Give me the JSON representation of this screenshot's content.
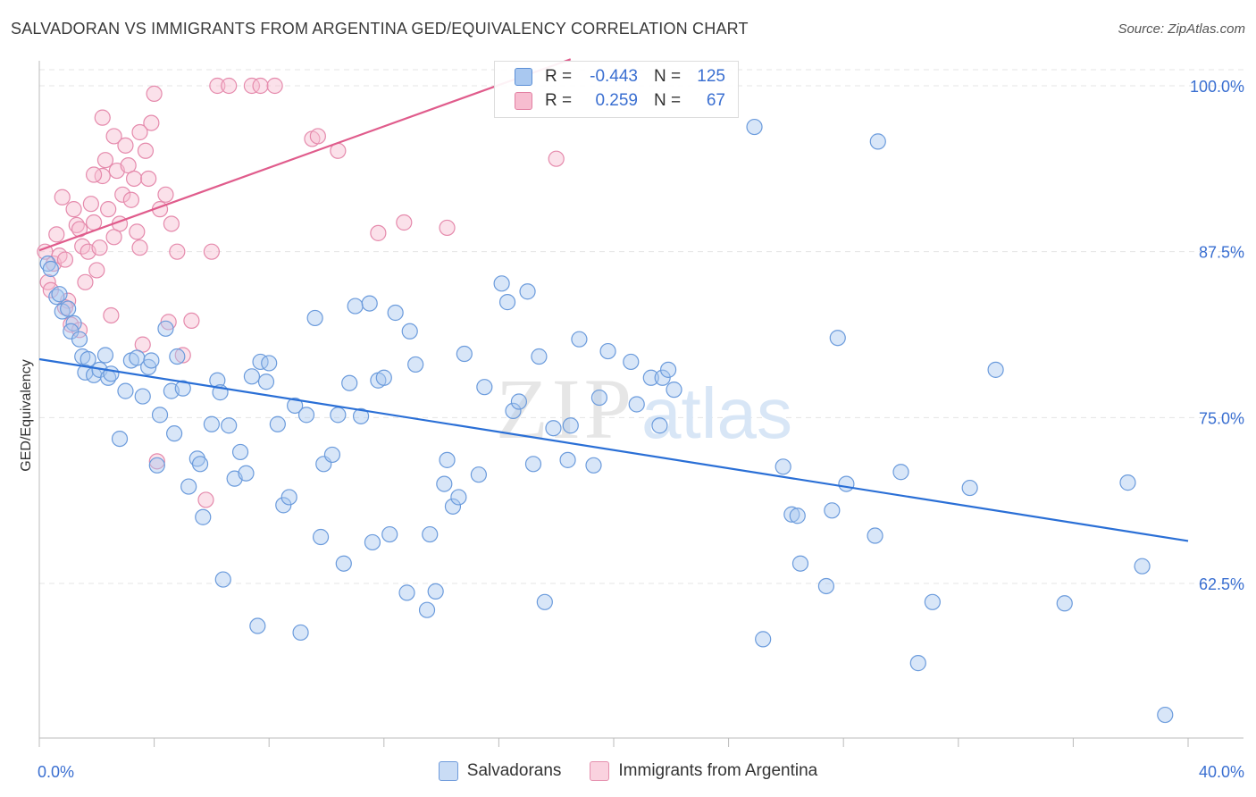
{
  "title": "SALVADORAN VS IMMIGRANTS FROM ARGENTINA GED/EQUIVALENCY CORRELATION CHART",
  "source": "Source: ZipAtlas.com",
  "watermark": {
    "zip": "ZIP",
    "atlas": "atlas"
  },
  "legend": {
    "r_label": "R =",
    "n_label": "N =",
    "series": [
      {
        "name": "Salvadorans",
        "r": "-0.443",
        "n": "125",
        "fill": "#a9c8f0",
        "stroke": "#5b8fd6"
      },
      {
        "name": "Immigrants from Argentina",
        "r": "0.259",
        "n": "67",
        "fill": "#f7bdd0",
        "stroke": "#e27fa2"
      }
    ]
  },
  "colors": {
    "blue_line": "#2a6fd6",
    "pink_line": "#e05c8c",
    "tick_text": "#3a6fd1",
    "grid": "#e4e4e4"
  },
  "chart_data": {
    "type": "scatter",
    "xlabel": "",
    "ylabel": "GED/Equivalency",
    "xlim": [
      0,
      40
    ],
    "ylim": [
      50,
      102
    ],
    "x_tick_labels": [
      {
        "value": 0,
        "label": "0.0%"
      },
      {
        "value": 40,
        "label": "40.0%"
      }
    ],
    "y_tick_labels": [
      {
        "value": 100,
        "label": "100.0%"
      },
      {
        "value": 87.5,
        "label": "87.5%"
      },
      {
        "value": 75,
        "label": "75.0%"
      },
      {
        "value": 62.5,
        "label": "62.5%"
      }
    ],
    "series": [
      {
        "name": "Salvadorans",
        "trend": {
          "x": [
            0,
            40
          ],
          "y": [
            79.4,
            65.7
          ]
        },
        "points": [
          [
            0.3,
            86.6
          ],
          [
            0.4,
            86.2
          ],
          [
            0.6,
            84.1
          ],
          [
            0.7,
            84.3
          ],
          [
            0.8,
            83.0
          ],
          [
            1.0,
            83.2
          ],
          [
            1.2,
            82.1
          ],
          [
            1.1,
            81.5
          ],
          [
            1.4,
            80.9
          ],
          [
            1.5,
            79.6
          ],
          [
            1.7,
            79.4
          ],
          [
            1.6,
            78.4
          ],
          [
            1.9,
            78.2
          ],
          [
            2.1,
            78.6
          ],
          [
            2.3,
            79.7
          ],
          [
            2.4,
            78.0
          ],
          [
            2.5,
            78.3
          ],
          [
            2.8,
            73.4
          ],
          [
            3.0,
            77.0
          ],
          [
            3.2,
            79.3
          ],
          [
            3.4,
            79.5
          ],
          [
            3.8,
            78.8
          ],
          [
            3.6,
            76.6
          ],
          [
            3.9,
            79.3
          ],
          [
            4.2,
            75.2
          ],
          [
            4.4,
            81.7
          ],
          [
            4.1,
            71.4
          ],
          [
            4.6,
            77.0
          ],
          [
            4.7,
            73.8
          ],
          [
            4.8,
            79.6
          ],
          [
            5.0,
            77.2
          ],
          [
            5.2,
            69.8
          ],
          [
            5.5,
            71.9
          ],
          [
            5.6,
            71.5
          ],
          [
            5.7,
            67.5
          ],
          [
            6.0,
            74.5
          ],
          [
            6.2,
            77.8
          ],
          [
            6.3,
            76.9
          ],
          [
            6.4,
            62.8
          ],
          [
            6.6,
            74.4
          ],
          [
            6.8,
            70.4
          ],
          [
            7.0,
            72.4
          ],
          [
            7.2,
            70.8
          ],
          [
            7.4,
            78.1
          ],
          [
            7.6,
            59.3
          ],
          [
            7.7,
            79.2
          ],
          [
            7.9,
            77.7
          ],
          [
            8.0,
            79.1
          ],
          [
            8.3,
            74.5
          ],
          [
            8.5,
            68.4
          ],
          [
            8.7,
            69.0
          ],
          [
            8.9,
            75.9
          ],
          [
            9.1,
            58.8
          ],
          [
            9.3,
            75.2
          ],
          [
            9.6,
            82.5
          ],
          [
            9.8,
            66.0
          ],
          [
            9.9,
            71.5
          ],
          [
            10.2,
            72.2
          ],
          [
            10.4,
            75.2
          ],
          [
            10.6,
            64.0
          ],
          [
            10.8,
            77.6
          ],
          [
            11.0,
            83.4
          ],
          [
            11.2,
            75.1
          ],
          [
            11.5,
            83.6
          ],
          [
            11.6,
            65.6
          ],
          [
            11.8,
            77.8
          ],
          [
            12.0,
            78.0
          ],
          [
            12.2,
            66.2
          ],
          [
            12.4,
            82.9
          ],
          [
            12.8,
            61.8
          ],
          [
            12.9,
            81.5
          ],
          [
            13.1,
            79.0
          ],
          [
            13.5,
            60.5
          ],
          [
            13.6,
            66.2
          ],
          [
            13.8,
            61.9
          ],
          [
            14.1,
            70.0
          ],
          [
            14.2,
            71.8
          ],
          [
            14.4,
            68.3
          ],
          [
            14.6,
            69.0
          ],
          [
            14.8,
            79.8
          ],
          [
            15.3,
            70.7
          ],
          [
            15.5,
            77.3
          ],
          [
            16.1,
            85.1
          ],
          [
            16.3,
            83.7
          ],
          [
            16.5,
            75.5
          ],
          [
            16.7,
            76.2
          ],
          [
            17.0,
            84.5
          ],
          [
            17.2,
            71.5
          ],
          [
            17.4,
            79.6
          ],
          [
            17.6,
            61.1
          ],
          [
            17.9,
            74.2
          ],
          [
            18.4,
            71.8
          ],
          [
            18.5,
            74.4
          ],
          [
            18.8,
            80.9
          ],
          [
            19.3,
            71.4
          ],
          [
            19.5,
            76.5
          ],
          [
            19.8,
            80.0
          ],
          [
            20.6,
            79.2
          ],
          [
            20.8,
            76.0
          ],
          [
            21.3,
            78.0
          ],
          [
            21.6,
            74.4
          ],
          [
            21.7,
            78.0
          ],
          [
            21.9,
            78.6
          ],
          [
            22.1,
            77.1
          ],
          [
            24.9,
            96.9
          ],
          [
            25.2,
            58.3
          ],
          [
            25.9,
            71.3
          ],
          [
            26.2,
            67.7
          ],
          [
            26.4,
            67.6
          ],
          [
            26.5,
            64.0
          ],
          [
            27.4,
            62.3
          ],
          [
            27.6,
            68.0
          ],
          [
            27.8,
            81.0
          ],
          [
            28.1,
            70.0
          ],
          [
            29.1,
            66.1
          ],
          [
            29.2,
            95.8
          ],
          [
            30.0,
            70.9
          ],
          [
            30.6,
            56.5
          ],
          [
            31.1,
            61.1
          ],
          [
            32.4,
            69.7
          ],
          [
            33.3,
            78.6
          ],
          [
            35.7,
            61.0
          ],
          [
            37.9,
            70.1
          ],
          [
            38.4,
            63.8
          ],
          [
            39.2,
            52.6
          ]
        ]
      },
      {
        "name": "Immigrants from Argentina",
        "trend": {
          "x": [
            0,
            18.5
          ],
          "y": [
            87.6,
            102.0
          ]
        },
        "points": [
          [
            0.2,
            87.5
          ],
          [
            0.3,
            85.2
          ],
          [
            0.4,
            84.6
          ],
          [
            0.5,
            86.6
          ],
          [
            0.6,
            88.8
          ],
          [
            0.7,
            87.2
          ],
          [
            0.8,
            91.6
          ],
          [
            0.9,
            86.9
          ],
          [
            1.0,
            83.8
          ],
          [
            1.1,
            82.0
          ],
          [
            1.2,
            90.7
          ],
          [
            1.3,
            89.5
          ],
          [
            1.4,
            89.2
          ],
          [
            1.5,
            87.9
          ],
          [
            1.6,
            85.2
          ],
          [
            1.7,
            87.5
          ],
          [
            1.8,
            91.1
          ],
          [
            1.9,
            89.7
          ],
          [
            2.0,
            86.1
          ],
          [
            2.1,
            87.8
          ],
          [
            2.2,
            93.2
          ],
          [
            2.3,
            94.4
          ],
          [
            2.4,
            90.7
          ],
          [
            2.5,
            82.7
          ],
          [
            2.6,
            96.2
          ],
          [
            2.7,
            93.6
          ],
          [
            2.8,
            89.6
          ],
          [
            2.9,
            91.8
          ],
          [
            3.0,
            95.5
          ],
          [
            3.1,
            94.0
          ],
          [
            3.2,
            91.4
          ],
          [
            3.3,
            93.0
          ],
          [
            3.4,
            89.0
          ],
          [
            3.5,
            87.8
          ],
          [
            3.6,
            80.5
          ],
          [
            3.7,
            95.1
          ],
          [
            3.8,
            93.0
          ],
          [
            3.9,
            97.2
          ],
          [
            4.0,
            99.4
          ],
          [
            4.1,
            71.7
          ],
          [
            4.2,
            90.7
          ],
          [
            4.4,
            91.8
          ],
          [
            4.5,
            82.2
          ],
          [
            4.6,
            89.6
          ],
          [
            4.8,
            87.5
          ],
          [
            5.0,
            79.7
          ],
          [
            5.3,
            82.3
          ],
          [
            6.0,
            87.5
          ],
          [
            6.2,
            100.0
          ],
          [
            6.6,
            100.0
          ],
          [
            7.4,
            100.0
          ],
          [
            7.7,
            100.0
          ],
          [
            8.2,
            100.0
          ],
          [
            9.5,
            96.0
          ],
          [
            9.7,
            96.2
          ],
          [
            10.4,
            95.1
          ],
          [
            11.8,
            88.9
          ],
          [
            12.7,
            89.7
          ],
          [
            14.2,
            89.3
          ],
          [
            18.0,
            94.5
          ],
          [
            2.2,
            97.6
          ],
          [
            3.5,
            96.5
          ],
          [
            1.9,
            93.3
          ],
          [
            2.6,
            88.6
          ],
          [
            0.9,
            83.3
          ],
          [
            5.8,
            68.8
          ],
          [
            1.4,
            81.6
          ]
        ]
      }
    ]
  }
}
